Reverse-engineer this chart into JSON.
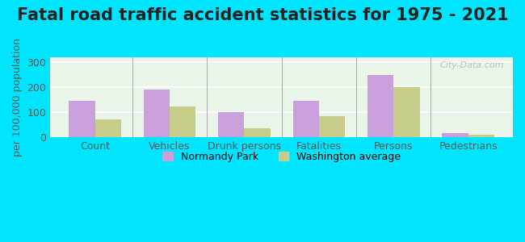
{
  "title": "Fatal road traffic accident statistics for 1975 - 2021",
  "ylabel": "per 100,000 population",
  "categories": [
    "Count",
    "Vehicles",
    "Drunk persons",
    "Fatalities",
    "Persons",
    "Pedestrians"
  ],
  "normandy_park": [
    145,
    192,
    101,
    145,
    248,
    18
  ],
  "washington_avg": [
    72,
    122,
    35,
    84,
    201,
    11
  ],
  "normandy_color": "#c9a0dc",
  "washington_color": "#c8cc8a",
  "ylim": [
    0,
    320
  ],
  "yticks": [
    0,
    100,
    200,
    300
  ],
  "bar_width": 0.35,
  "plot_bg": "#e8f5e8",
  "outer_bg": "#00e5ff",
  "legend_labels": [
    "Normandy Park",
    "Washington average"
  ],
  "watermark": "City-Data.com",
  "title_fontsize": 15,
  "axis_fontsize": 9,
  "tick_fontsize": 9
}
